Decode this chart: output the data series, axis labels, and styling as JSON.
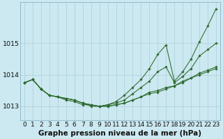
{
  "bg_color": "#cce8f0",
  "grid_color": "#aacfdb",
  "line_color": "#2d6a2d",
  "title": "Graphe pression niveau de la mer (hPa)",
  "title_fontsize": 7.5,
  "tick_fontsize": 6.5,
  "xlim": [
    -0.5,
    23.5
  ],
  "ylim": [
    1012.55,
    1016.3
  ],
  "yticks": [
    1013,
    1014,
    1015
  ],
  "xticks": [
    0,
    1,
    2,
    3,
    4,
    5,
    6,
    7,
    8,
    9,
    10,
    11,
    12,
    13,
    14,
    15,
    16,
    17,
    18,
    19,
    20,
    21,
    22,
    23
  ],
  "series": {
    "line_steep": [
      1013.75,
      1013.85,
      1013.55,
      1013.35,
      1013.3,
      1013.2,
      1013.15,
      1013.05,
      1013.05,
      1013.0,
      1013.05,
      1013.15,
      1013.35,
      1013.6,
      1013.85,
      1014.2,
      1014.65,
      1014.95,
      1013.8,
      1014.1,
      1014.5,
      1015.05,
      1015.55,
      1016.1
    ],
    "line_mid1": [
      1013.75,
      1013.85,
      1013.55,
      1013.35,
      1013.3,
      1013.25,
      1013.2,
      1013.1,
      1013.05,
      1013.0,
      1013.05,
      1013.1,
      1013.2,
      1013.4,
      1013.6,
      1013.8,
      1014.1,
      1014.25,
      1013.75,
      1013.95,
      1014.2,
      1014.6,
      1014.8,
      1015.0
    ],
    "line_flat1": [
      1013.75,
      1013.85,
      1013.55,
      1013.35,
      1013.3,
      1013.25,
      1013.2,
      1013.1,
      1013.05,
      1013.0,
      1013.0,
      1013.05,
      1013.1,
      1013.2,
      1013.3,
      1013.45,
      1013.5,
      1013.6,
      1013.65,
      1013.8,
      1013.9,
      1014.05,
      1014.15,
      1014.25
    ],
    "line_flat2": [
      1013.75,
      1013.85,
      1013.55,
      1013.35,
      1013.3,
      1013.25,
      1013.2,
      1013.1,
      1013.0,
      1013.0,
      1013.0,
      1013.05,
      1013.1,
      1013.2,
      1013.3,
      1013.4,
      1013.45,
      1013.55,
      1013.65,
      1013.75,
      1013.9,
      1014.0,
      1014.1,
      1014.2
    ]
  },
  "marker": "D",
  "markersize": 1.8,
  "linewidth": 0.75
}
